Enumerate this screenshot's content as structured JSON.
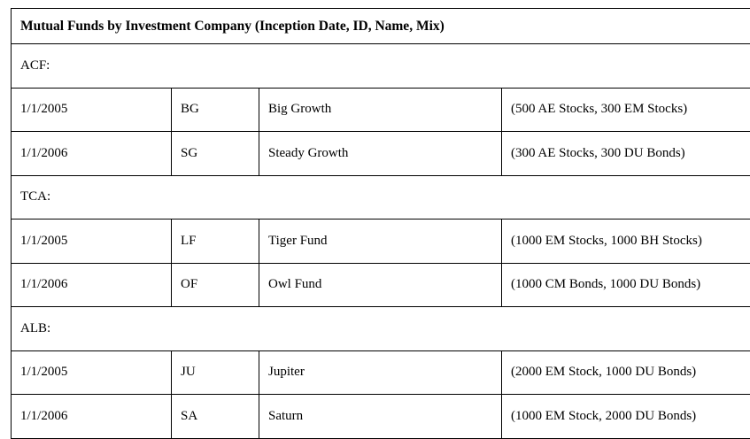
{
  "title": "Mutual Funds by Investment Company (Inception Date, ID, Name, Mix)",
  "groups": [
    {
      "company": "ACF:",
      "funds": [
        {
          "date": "1/1/2005",
          "id": "BG",
          "name": "Big Growth",
          "mix": "(500 AE Stocks, 300 EM Stocks)"
        },
        {
          "date": "1/1/2006",
          "id": "SG",
          "name": "Steady Growth",
          "mix": "(300 AE Stocks, 300 DU Bonds)"
        }
      ]
    },
    {
      "company": "TCA:",
      "funds": [
        {
          "date": "1/1/2005",
          "id": "LF",
          "name": "Tiger Fund",
          "mix": "(1000 EM Stocks, 1000 BH Stocks)"
        },
        {
          "date": "1/1/2006",
          "id": "OF",
          "name": "Owl Fund",
          "mix": "(1000 CM Bonds, 1000 DU Bonds)"
        }
      ]
    },
    {
      "company": "ALB:",
      "funds": [
        {
          "date": "1/1/2005",
          "id": "JU",
          "name": "Jupiter",
          "mix": "(2000 EM Stock, 1000 DU Bonds)"
        },
        {
          "date": "1/1/2006",
          "id": "SA",
          "name": "Saturn",
          "mix": "(1000 EM Stock, 2000 DU Bonds)"
        }
      ]
    }
  ]
}
